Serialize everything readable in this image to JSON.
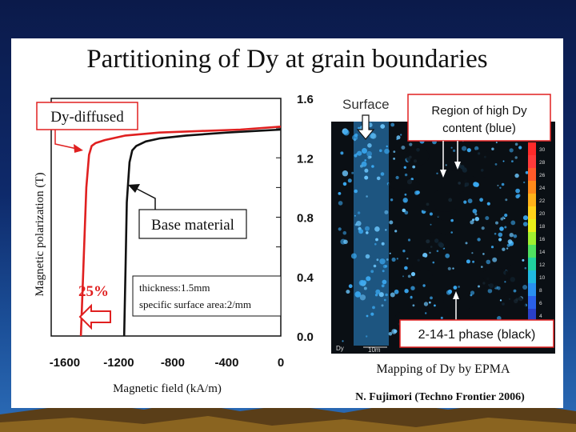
{
  "slide": {
    "title": "Partitioning of Dy at grain boundaries",
    "credit": "N. Fujimori (Techno Frontier 2006)"
  },
  "chart_data": {
    "type": "line",
    "xlabel": "Magnetic field (kA/m)",
    "ylabel": "Magnetic polarization (T)",
    "xlim": [
      -1700,
      0
    ],
    "ylim": [
      0,
      1.6
    ],
    "x_ticks": [
      "-1600",
      "-1200",
      "-800",
      "-400",
      "0"
    ],
    "y_ticks": [
      "0.0",
      "0.4",
      "0.8",
      "1.2",
      "1.6"
    ],
    "grid": false,
    "series": [
      {
        "name": "Dy-diffused",
        "color": "#e02020",
        "x": [
          -1480,
          -1460,
          -1440,
          -1420,
          -1400,
          -1370,
          -1300,
          -1150,
          -900,
          -600,
          -300,
          0
        ],
        "y": [
          0.0,
          0.5,
          1.0,
          1.22,
          1.28,
          1.3,
          1.32,
          1.35,
          1.37,
          1.38,
          1.39,
          1.41
        ]
      },
      {
        "name": "Base material",
        "color": "#111111",
        "x": [
          -1160,
          -1150,
          -1140,
          -1120,
          -1100,
          -1070,
          -1000,
          -900,
          -700,
          -400,
          -200,
          0
        ],
        "y": [
          0.0,
          0.45,
          0.9,
          1.17,
          1.25,
          1.28,
          1.31,
          1.33,
          1.35,
          1.37,
          1.38,
          1.39
        ]
      }
    ],
    "annotations": {
      "reduction": "25%",
      "thickness": "thickness:1.5mm",
      "surface_area": "specific surface area:2/mm"
    }
  },
  "epma": {
    "surface_label": "Surface",
    "high_dy_label_line1": "Region of high Dy",
    "high_dy_label_line2": "content (blue)",
    "phase_label": "2-14-1 phase (black)",
    "caption": "Mapping of Dy by EPMA",
    "scale_label": "Dy",
    "scale_bar_label": "10m",
    "colorbar_labels": [
      "30",
      "28",
      "26",
      "24",
      "22",
      "20",
      "18",
      "16",
      "14",
      "12",
      "10",
      "8",
      "6",
      "4"
    ]
  },
  "colors": {
    "accent_red": "#e02020",
    "map_blue": "#3aa8f0",
    "map_dark": "#0a0f14"
  }
}
